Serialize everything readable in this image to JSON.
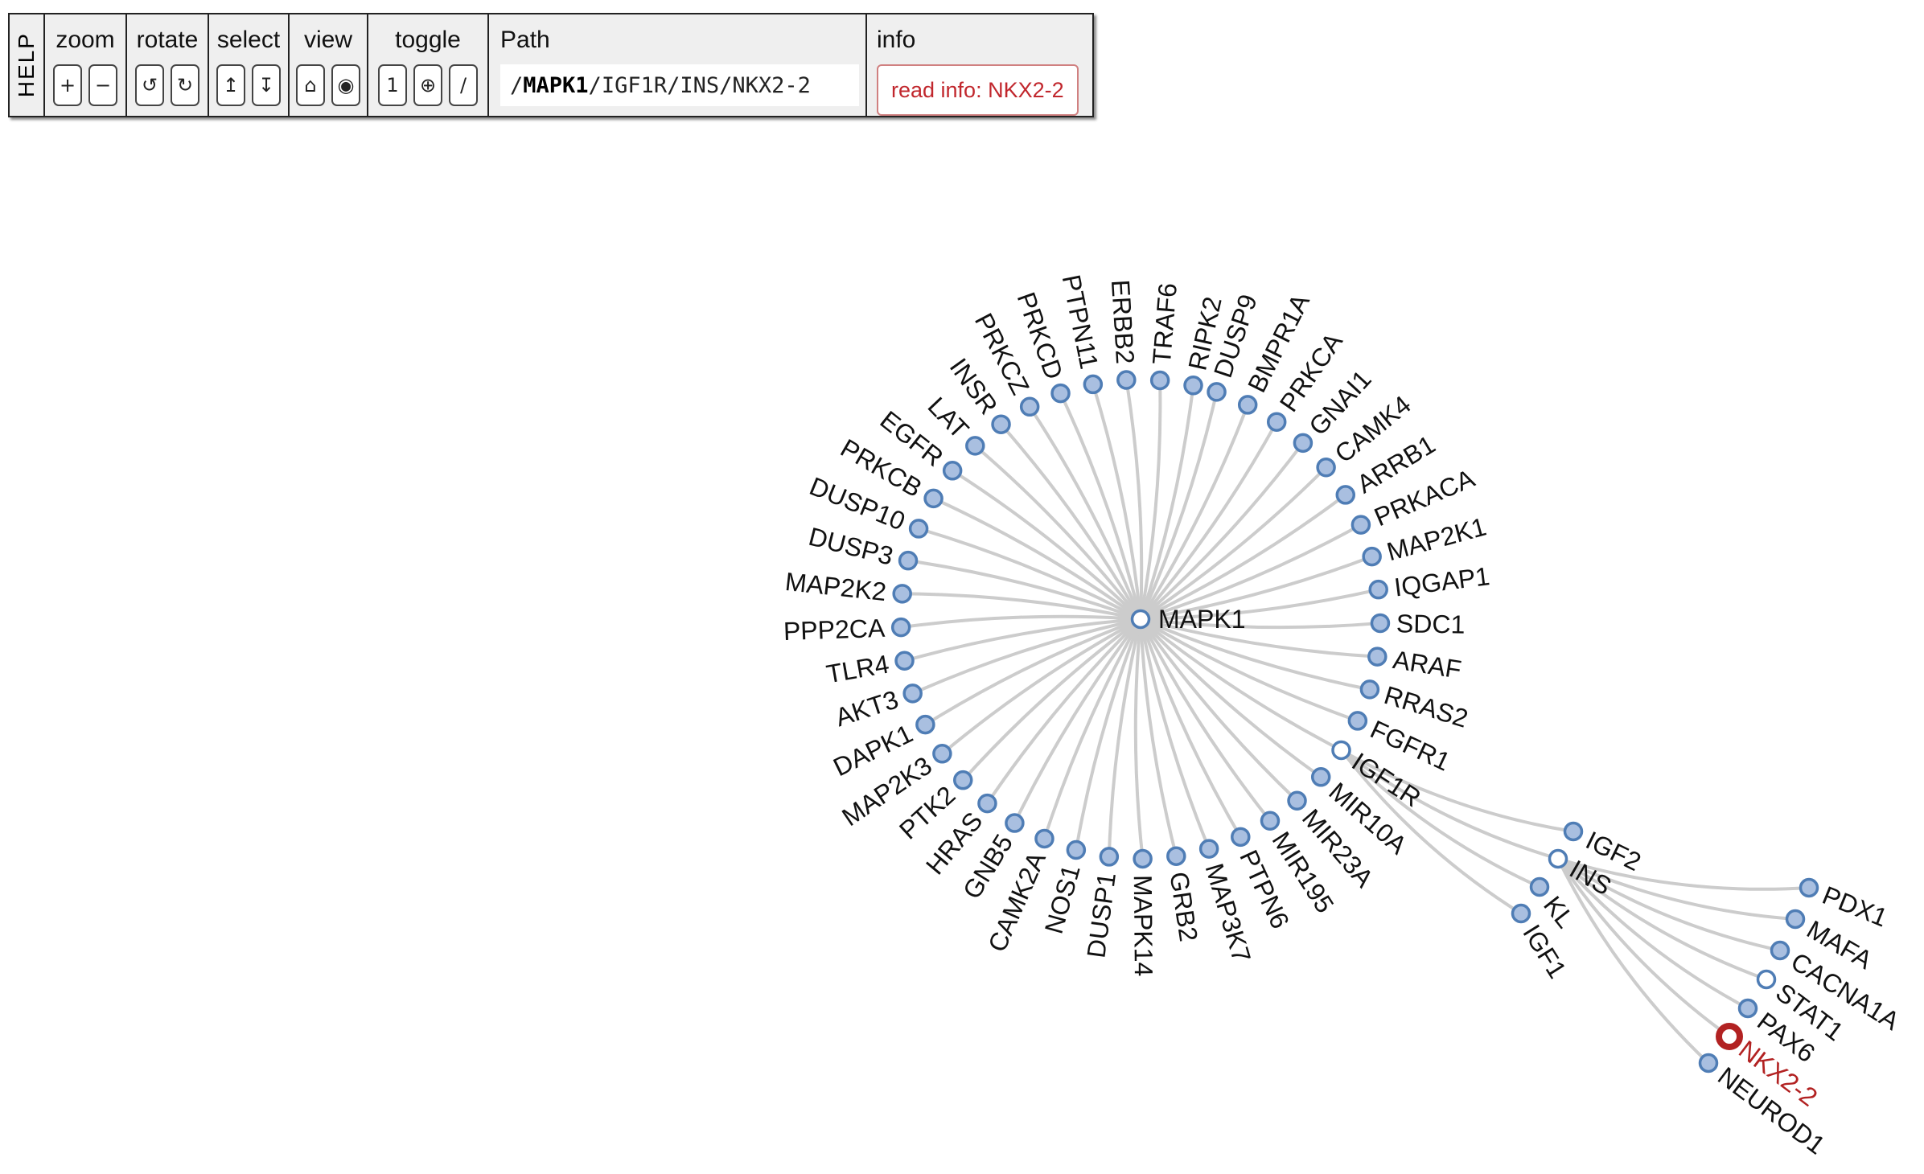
{
  "toolbar": {
    "help_label": "HELP",
    "groups": {
      "zoom": {
        "title": "zoom",
        "buttons": [
          "+",
          "−"
        ]
      },
      "rotate": {
        "title": "rotate",
        "buttons": [
          "↺",
          "↻"
        ]
      },
      "select": {
        "title": "select",
        "buttons": [
          "↥",
          "↧"
        ]
      },
      "view": {
        "title": "view",
        "buttons": [
          "⌂",
          "◉"
        ]
      },
      "toggle": {
        "title": "toggle",
        "buttons": [
          "1",
          "⊕",
          "/"
        ]
      }
    },
    "path": {
      "title": "Path",
      "separator": "/",
      "segments": [
        "MAPK1",
        "IGF1R",
        "INS",
        "NKX2-2"
      ]
    },
    "info": {
      "title": "info",
      "button_label": "read info: NKX2-2"
    }
  },
  "colors": {
    "node_fill": "#a9bfe0",
    "node_stroke": "#4f7db5",
    "collapsed_fill": "#ffffff",
    "edge": "#cccccc",
    "selected": "#b22222",
    "text": "#111111"
  },
  "graph": {
    "root": "MAPK1",
    "selected": "NKX2-2",
    "nodes": [
      {
        "id": "MAPK1",
        "label": "MAPK1",
        "parent": null,
        "expanded": true
      },
      {
        "id": "DUSP9",
        "label": "DUSP9",
        "parent": "MAPK1"
      },
      {
        "id": "BMPR1A",
        "label": "BMPR1A",
        "parent": "MAPK1"
      },
      {
        "id": "PRKCA",
        "label": "PRKCA",
        "parent": "MAPK1"
      },
      {
        "id": "GNAI1",
        "label": "GNAI1",
        "parent": "MAPK1"
      },
      {
        "id": "CAMK4",
        "label": "CAMK4",
        "parent": "MAPK1"
      },
      {
        "id": "ARRB1",
        "label": "ARRB1",
        "parent": "MAPK1"
      },
      {
        "id": "PRKACA",
        "label": "PRKACA",
        "parent": "MAPK1"
      },
      {
        "id": "MAP2K1",
        "label": "MAP2K1",
        "parent": "MAPK1"
      },
      {
        "id": "IQGAP1",
        "label": "IQGAP1",
        "parent": "MAPK1"
      },
      {
        "id": "SDC1",
        "label": "SDC1",
        "parent": "MAPK1"
      },
      {
        "id": "ARAF",
        "label": "ARAF",
        "parent": "MAPK1"
      },
      {
        "id": "RRAS2",
        "label": "RRAS2",
        "parent": "MAPK1"
      },
      {
        "id": "FGFR1",
        "label": "FGFR1",
        "parent": "MAPK1"
      },
      {
        "id": "IGF1R",
        "label": "IGF1R",
        "parent": "MAPK1",
        "expanded": true
      },
      {
        "id": "MIR10A",
        "label": "MIR10A",
        "parent": "MAPK1"
      },
      {
        "id": "MIR23A",
        "label": "MIR23A",
        "parent": "MAPK1"
      },
      {
        "id": "MIR195",
        "label": "MIR195",
        "parent": "MAPK1"
      },
      {
        "id": "PTPN6",
        "label": "PTPN6",
        "parent": "MAPK1"
      },
      {
        "id": "MAP3K7",
        "label": "MAP3K7",
        "parent": "MAPK1"
      },
      {
        "id": "GRB2",
        "label": "GRB2",
        "parent": "MAPK1"
      },
      {
        "id": "MAPK14",
        "label": "MAPK14",
        "parent": "MAPK1"
      },
      {
        "id": "DUSP1",
        "label": "DUSP1",
        "parent": "MAPK1"
      },
      {
        "id": "NOS1",
        "label": "NOS1",
        "parent": "MAPK1"
      },
      {
        "id": "CAMK2A",
        "label": "CAMK2A",
        "parent": "MAPK1"
      },
      {
        "id": "GNB5",
        "label": "GNB5",
        "parent": "MAPK1"
      },
      {
        "id": "HRAS",
        "label": "HRAS",
        "parent": "MAPK1"
      },
      {
        "id": "PTK2",
        "label": "PTK2",
        "parent": "MAPK1"
      },
      {
        "id": "MAP2K3",
        "label": "MAP2K3",
        "parent": "MAPK1"
      },
      {
        "id": "DAPK1",
        "label": "DAPK1",
        "parent": "MAPK1"
      },
      {
        "id": "AKT3",
        "label": "AKT3",
        "parent": "MAPK1"
      },
      {
        "id": "TLR4",
        "label": "TLR4",
        "parent": "MAPK1"
      },
      {
        "id": "PPP2CA",
        "label": "PPP2CA",
        "parent": "MAPK1"
      },
      {
        "id": "MAP2K2",
        "label": "MAP2K2",
        "parent": "MAPK1"
      },
      {
        "id": "DUSP3",
        "label": "DUSP3",
        "parent": "MAPK1"
      },
      {
        "id": "DUSP10",
        "label": "DUSP10",
        "parent": "MAPK1"
      },
      {
        "id": "PRKCB",
        "label": "PRKCB",
        "parent": "MAPK1"
      },
      {
        "id": "EGFR",
        "label": "EGFR",
        "parent": "MAPK1"
      },
      {
        "id": "LAT",
        "label": "LAT",
        "parent": "MAPK1"
      },
      {
        "id": "INSR",
        "label": "INSR",
        "parent": "MAPK1"
      },
      {
        "id": "PRKCZ",
        "label": "PRKCZ",
        "parent": "MAPK1"
      },
      {
        "id": "PRKCD",
        "label": "PRKCD",
        "parent": "MAPK1"
      },
      {
        "id": "PTPN11",
        "label": "PTPN11",
        "parent": "MAPK1"
      },
      {
        "id": "ERBB2",
        "label": "ERBB2",
        "parent": "MAPK1"
      },
      {
        "id": "TRAF6",
        "label": "TRAF6",
        "parent": "MAPK1"
      },
      {
        "id": "RIPK2",
        "label": "RIPK2",
        "parent": "MAPK1"
      },
      {
        "id": "IGF2",
        "label": "IGF2",
        "parent": "IGF1R"
      },
      {
        "id": "INS",
        "label": "INS",
        "parent": "IGF1R",
        "expanded": true
      },
      {
        "id": "KL",
        "label": "KL",
        "parent": "IGF1R"
      },
      {
        "id": "IGF1",
        "label": "IGF1",
        "parent": "IGF1R"
      },
      {
        "id": "PDX1",
        "label": "PDX1",
        "parent": "INS"
      },
      {
        "id": "MAFA",
        "label": "MAFA",
        "parent": "INS"
      },
      {
        "id": "CACNA1A",
        "label": "CACNA1A",
        "parent": "INS"
      },
      {
        "id": "STAT1",
        "label": "STAT1",
        "parent": "INS",
        "expanded": true
      },
      {
        "id": "PAX6",
        "label": "PAX6",
        "parent": "INS"
      },
      {
        "id": "NKX2-2",
        "label": "NKX2-2",
        "parent": "INS"
      },
      {
        "id": "NEUROD1",
        "label": "NEUROD1",
        "parent": "INS"
      }
    ]
  }
}
